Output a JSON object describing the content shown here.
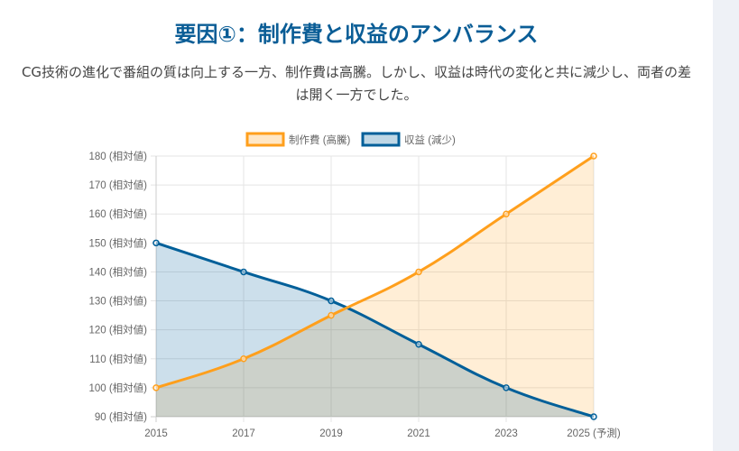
{
  "title": "要因①：制作費と収益のアンバランス",
  "description": "CG技術の進化で番組の質は向上する一方、制作費は高騰。しかし、収益は時代の変化と共に減少し、両者の差は開く一方でした。",
  "chart_data": {
    "type": "line",
    "categories": [
      "2015",
      "2017",
      "2019",
      "2021",
      "2023",
      "2025 (予測)"
    ],
    "series": [
      {
        "name": "制作費 (高騰)",
        "values": [
          100,
          110,
          125,
          140,
          160,
          180
        ],
        "color": "#ff9f1c",
        "fill": "rgba(255,159,28,0.18)"
      },
      {
        "name": "収益 (減少)",
        "values": [
          150,
          140,
          130,
          115,
          100,
          90
        ],
        "color": "#005f99",
        "fill": "rgba(0,95,153,0.2)"
      }
    ],
    "ylim": [
      90,
      180
    ],
    "yticks": [
      "90 (相対値)",
      "100 (相対値)",
      "110 (相対値)",
      "120 (相対値)",
      "130 (相対値)",
      "140 (相対値)",
      "150 (相対値)",
      "160 (相対値)",
      "170 (相対値)",
      "180 (相対値)"
    ],
    "area_fill": true,
    "grid": true,
    "legend_position": "top"
  }
}
